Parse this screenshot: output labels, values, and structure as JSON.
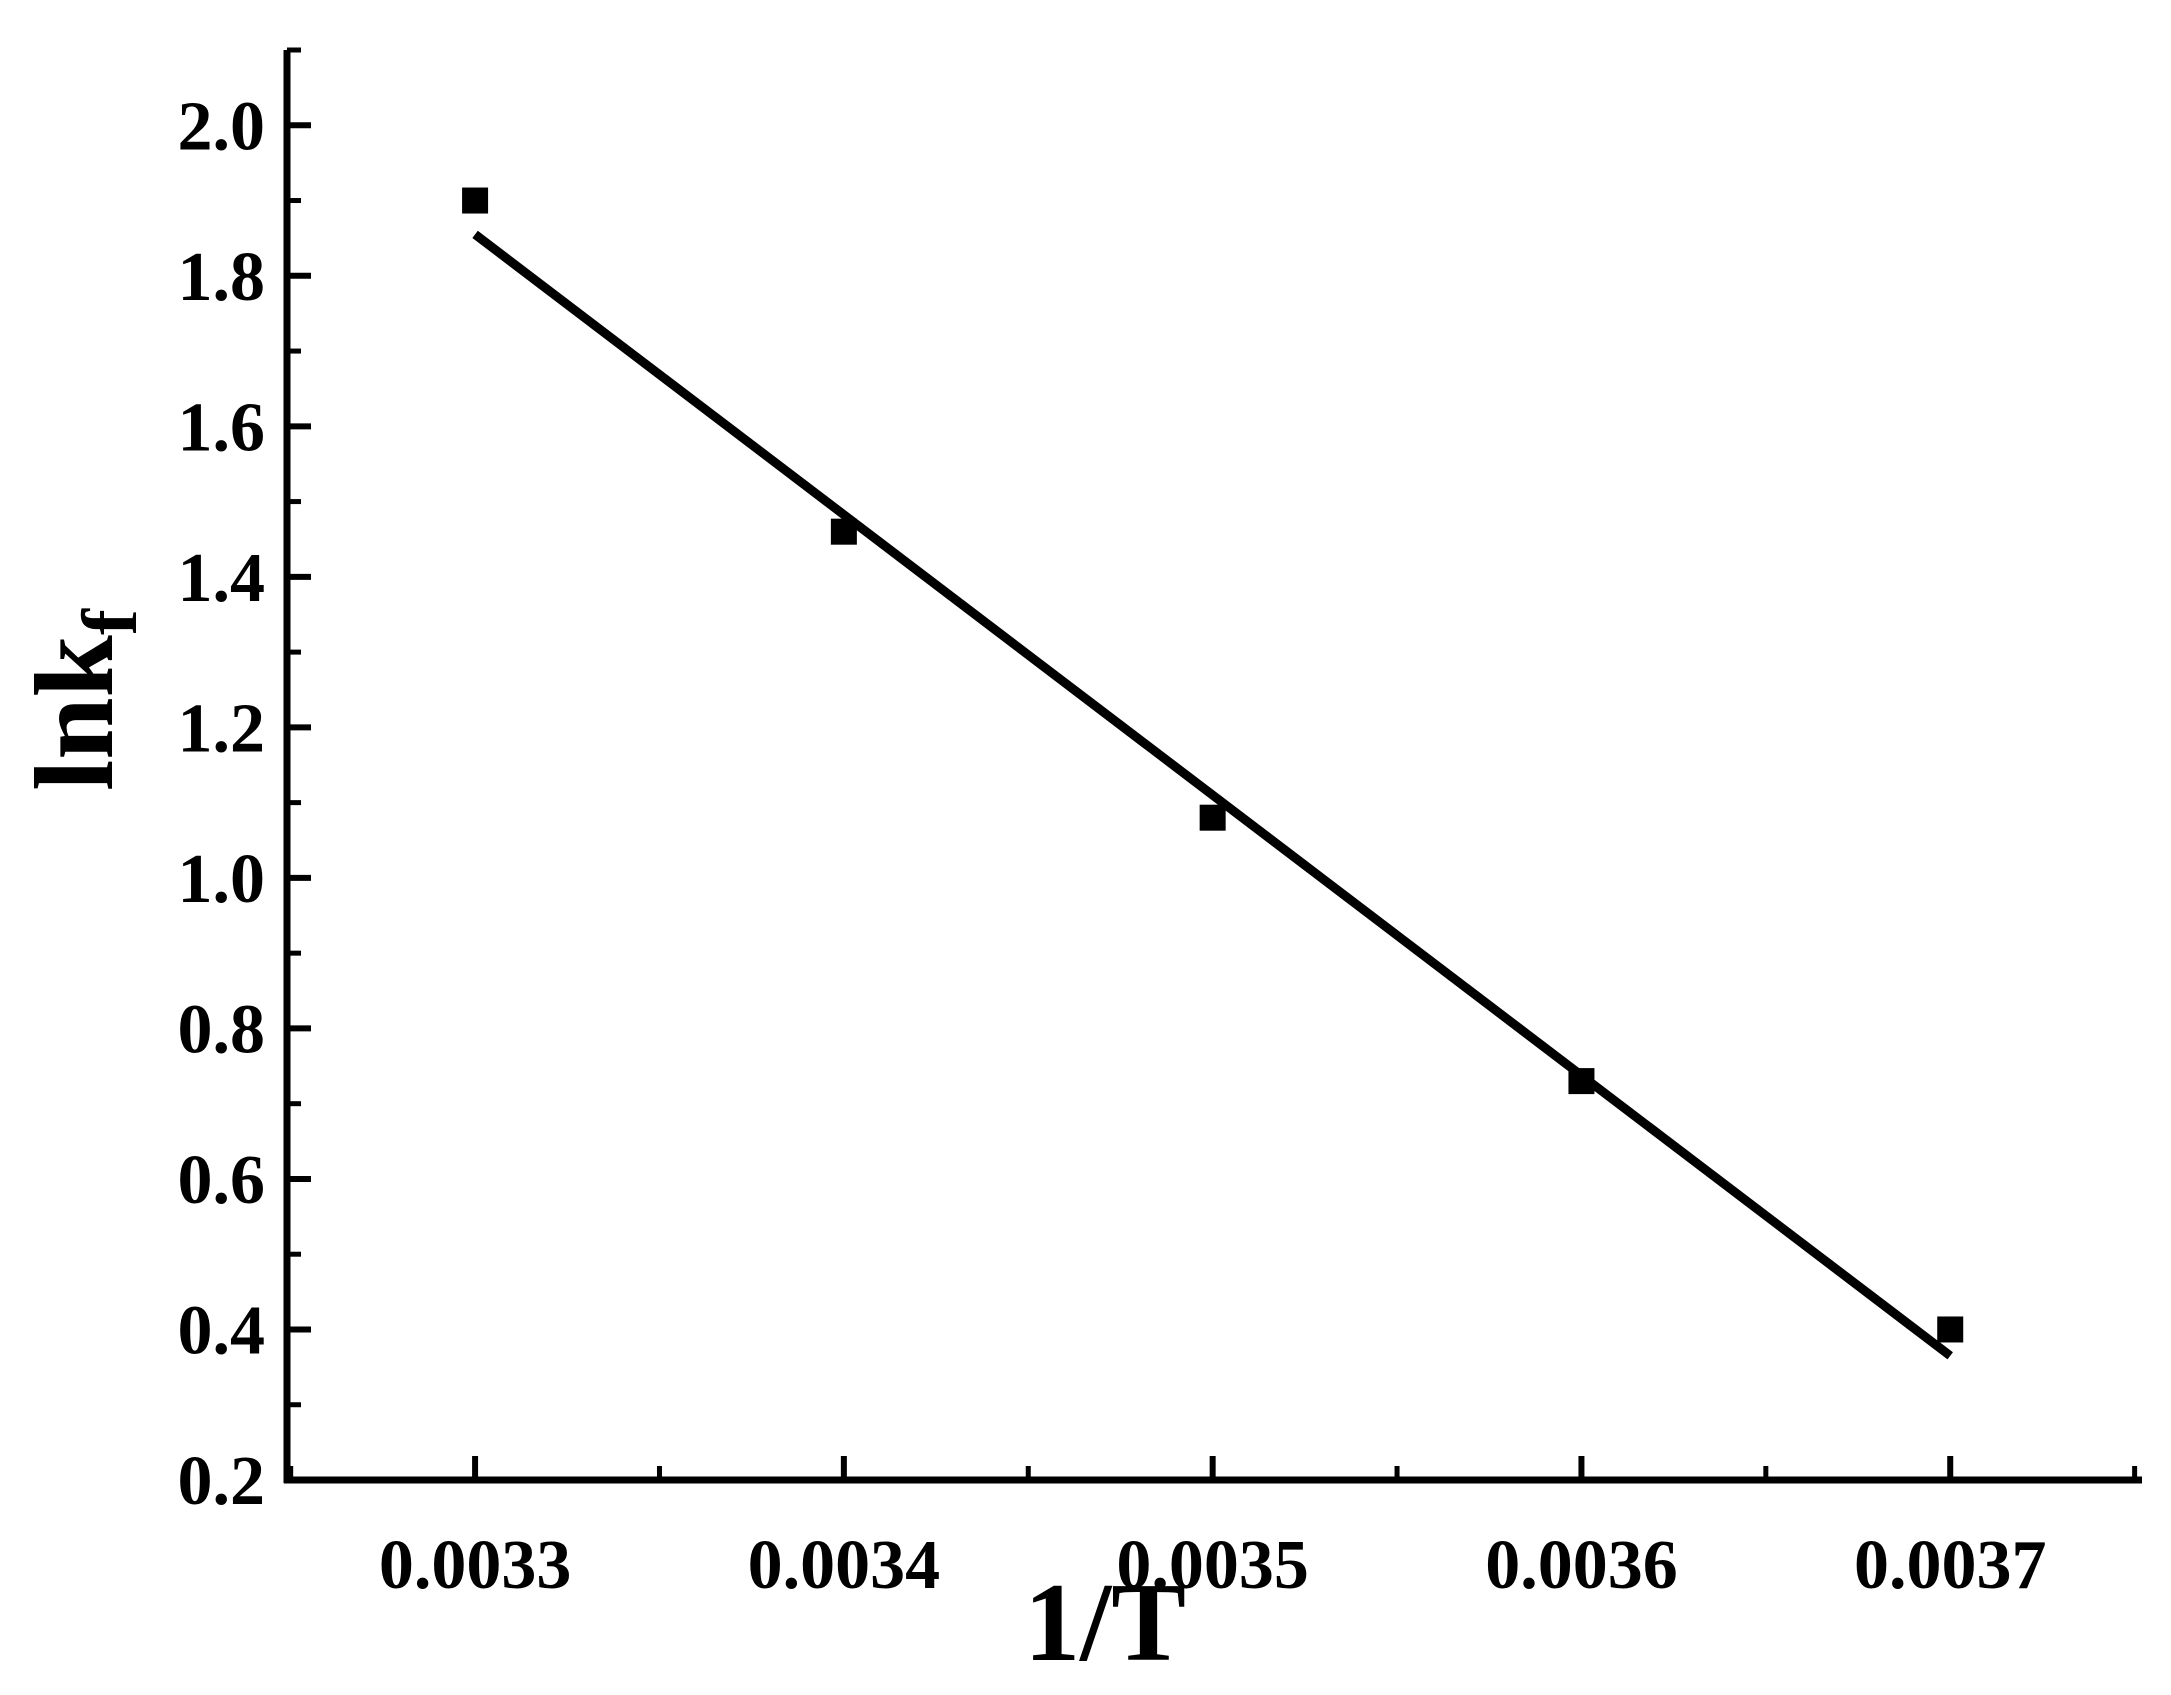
{
  "chart_data": {
    "type": "scatter",
    "xlabel": "1/T",
    "ylabel": {
      "main": "lnk",
      "subscript": "f"
    },
    "xlim": [
      0.003249,
      0.003752
    ],
    "ylim": [
      0.2,
      2.1
    ],
    "x_ticks": [
      "0.0033",
      "0.0034",
      "0.0035",
      "0.0036",
      "0.0037"
    ],
    "y_ticks": [
      "0.2",
      "0.4",
      "0.6",
      "0.8",
      "1.0",
      "1.2",
      "1.4",
      "1.6",
      "1.8",
      "2.0"
    ],
    "grid": false,
    "legend": "none",
    "series": [
      {
        "marker": "square",
        "color": "#000000",
        "points": [
          {
            "x": 0.0033,
            "y": 1.9
          },
          {
            "x": 0.0034,
            "y": 1.46
          },
          {
            "x": 0.0035,
            "y": 1.08
          },
          {
            "x": 0.0036,
            "y": 0.73
          },
          {
            "x": 0.0037,
            "y": 0.4
          }
        ]
      }
    ],
    "fit_line": {
      "style": "linear",
      "color": "#000000",
      "from": {
        "x": 0.0033,
        "y": 1.855
      },
      "to": {
        "x": 0.0037,
        "y": 0.365
      }
    }
  }
}
